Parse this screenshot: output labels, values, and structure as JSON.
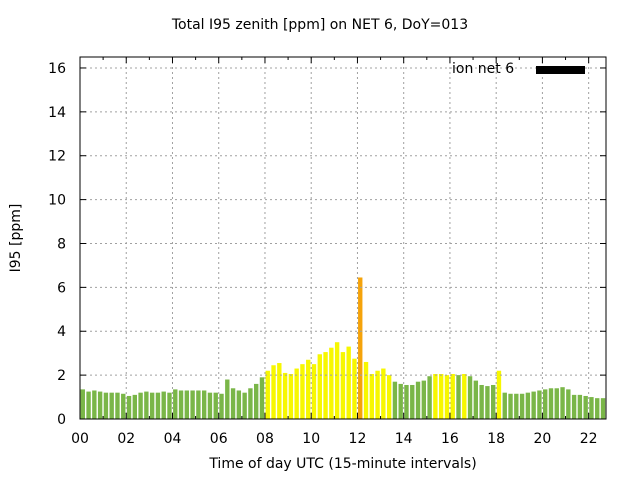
{
  "chart_data": {
    "type": "bar",
    "title": "Total I95 zenith [ppm] on NET 6, DoY=013",
    "xlabel": "Time of day UTC (15-minute intervals)",
    "ylabel": "I95 [ppm]",
    "legend": {
      "label": "ion net 6",
      "color": "#000000",
      "position": "top-right"
    },
    "xlim": [
      0,
      22.75
    ],
    "ylim": [
      0,
      16.5
    ],
    "x_ticks": [
      "00",
      "02",
      "04",
      "06",
      "08",
      "10",
      "12",
      "14",
      "16",
      "18",
      "20",
      "22"
    ],
    "y_ticks": [
      "0",
      "2",
      "4",
      "6",
      "8",
      "10",
      "12",
      "14",
      "16"
    ],
    "grid": true,
    "bar_width_hours": 0.25,
    "colors": {
      "green": "#7ab648",
      "yellow": "#f7f700",
      "orange": "#f5a30a"
    },
    "x": [
      0,
      0.25,
      0.5,
      0.75,
      1,
      1.25,
      1.5,
      1.75,
      2,
      2.25,
      2.5,
      2.75,
      3,
      3.25,
      3.5,
      3.75,
      4,
      4.25,
      4.5,
      4.75,
      5,
      5.25,
      5.5,
      5.75,
      6,
      6.25,
      6.5,
      6.75,
      7,
      7.25,
      7.5,
      7.75,
      8,
      8.25,
      8.5,
      8.75,
      9,
      9.25,
      9.5,
      9.75,
      10,
      10.25,
      10.5,
      10.75,
      11,
      11.25,
      11.5,
      11.75,
      12,
      12.25,
      12.5,
      12.75,
      13,
      13.25,
      13.5,
      13.75,
      14,
      14.25,
      14.5,
      14.75,
      15,
      15.25,
      15.5,
      15.75,
      16,
      16.25,
      16.5,
      16.75,
      17,
      17.25,
      17.5,
      17.75,
      18,
      18.25,
      18.5,
      18.75,
      19,
      19.25,
      19.5,
      19.75,
      20,
      20.25,
      20.5,
      20.75,
      21,
      21.25,
      21.5,
      21.75,
      22,
      22.25,
      22.5
    ],
    "values": [
      1.35,
      1.25,
      1.3,
      1.25,
      1.2,
      1.2,
      1.2,
      1.15,
      1.05,
      1.1,
      1.2,
      1.25,
      1.2,
      1.2,
      1.25,
      1.2,
      1.35,
      1.3,
      1.3,
      1.3,
      1.3,
      1.3,
      1.2,
      1.2,
      1.15,
      1.8,
      1.4,
      1.3,
      1.2,
      1.4,
      1.6,
      1.9,
      2.2,
      2.45,
      2.55,
      2.1,
      2.05,
      2.3,
      2.5,
      2.7,
      2.5,
      2.95,
      3.05,
      3.25,
      3.5,
      3.05,
      3.3,
      2.75,
      6.45,
      2.6,
      2.05,
      2.2,
      2.3,
      2.0,
      1.7,
      1.6,
      1.55,
      1.55,
      1.7,
      1.75,
      1.95,
      2.05,
      2.05,
      2.0,
      2.05,
      2.0,
      2.05,
      1.95,
      1.75,
      1.55,
      1.5,
      1.55,
      2.2,
      1.2,
      1.15,
      1.15,
      1.15,
      1.2,
      1.25,
      1.3,
      1.35,
      1.4,
      1.4,
      1.45,
      1.35,
      1.1,
      1.1,
      1.05,
      1.0,
      0.95,
      0.95
    ],
    "bar_colors": [
      "green",
      "green",
      "green",
      "green",
      "green",
      "green",
      "green",
      "green",
      "green",
      "green",
      "green",
      "green",
      "green",
      "green",
      "green",
      "green",
      "green",
      "green",
      "green",
      "green",
      "green",
      "green",
      "green",
      "green",
      "green",
      "green",
      "green",
      "green",
      "green",
      "green",
      "green",
      "green",
      "yellow",
      "yellow",
      "yellow",
      "yellow",
      "yellow",
      "yellow",
      "yellow",
      "yellow",
      "yellow",
      "yellow",
      "yellow",
      "yellow",
      "yellow",
      "yellow",
      "yellow",
      "yellow",
      "orange",
      "yellow",
      "yellow",
      "yellow",
      "yellow",
      "yellow",
      "green",
      "green",
      "green",
      "green",
      "green",
      "green",
      "green",
      "yellow",
      "yellow",
      "yellow",
      "yellow",
      "green",
      "yellow",
      "green",
      "green",
      "green",
      "green",
      "green",
      "yellow",
      "green",
      "green",
      "green",
      "green",
      "green",
      "green",
      "green",
      "green",
      "green",
      "green",
      "green",
      "green",
      "green",
      "green",
      "green",
      "green",
      "green",
      "green"
    ]
  }
}
